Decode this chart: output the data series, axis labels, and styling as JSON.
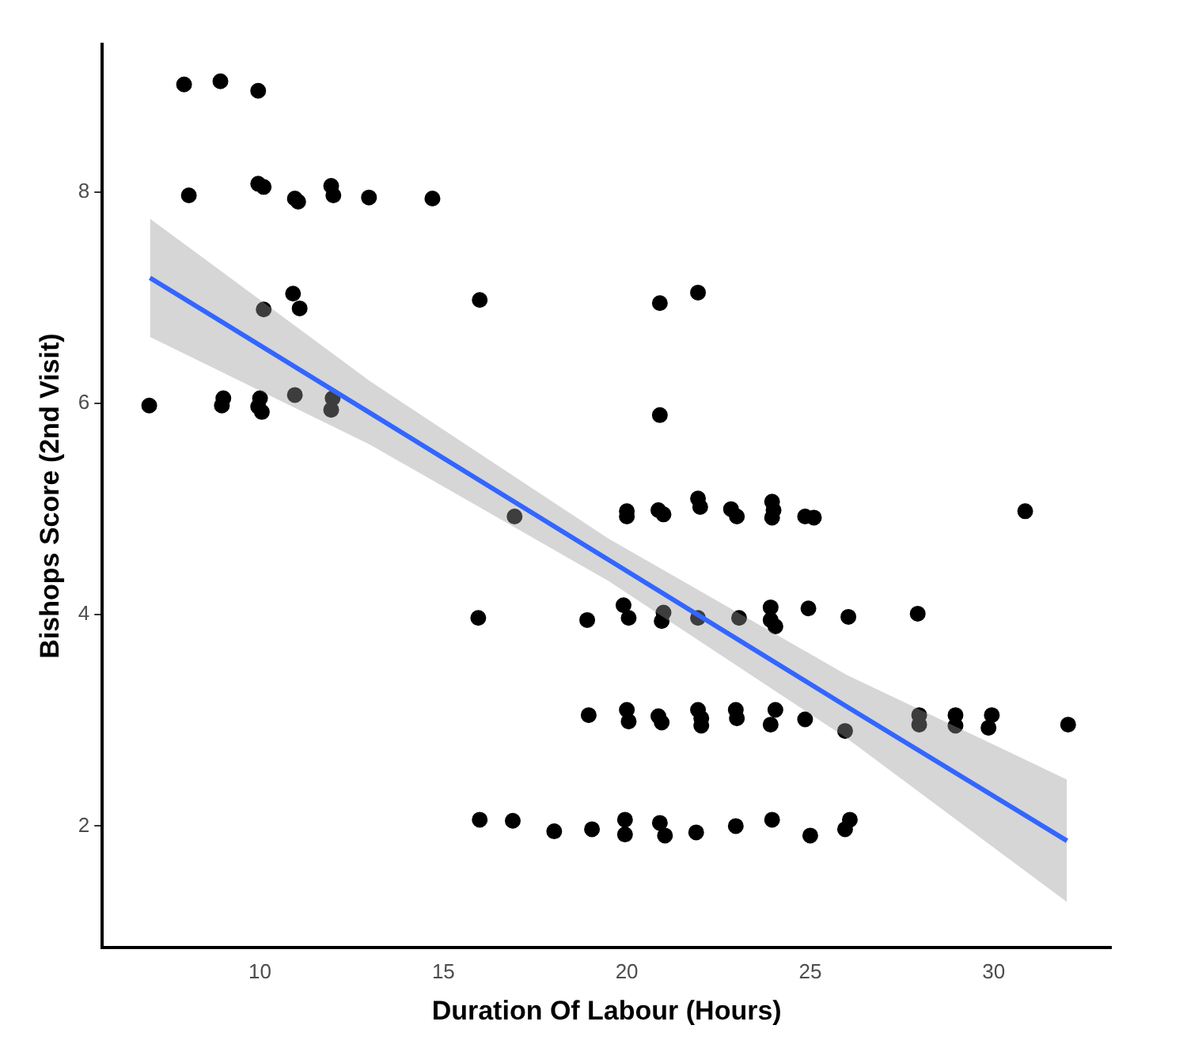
{
  "chart_data": {
    "type": "scatter",
    "xlabel": "Duration Of Labour (Hours)",
    "ylabel": "Bishops Score (2nd Visit)",
    "xlim": [
      5.7,
      33.2
    ],
    "xticks": [
      10,
      15,
      20,
      25,
      30
    ],
    "ylim": [
      0.85,
      9.4
    ],
    "yticks": [
      2,
      4,
      6,
      8
    ],
    "series": [
      {
        "marker": "circle",
        "color": "#000000",
        "x": [
          7.93,
          8.92,
          9.95,
          8.06,
          9.95,
          10.1,
          10.95,
          11.04,
          11.94,
          12.0,
          12.97,
          14.7,
          10.9,
          11.08,
          10.1,
          6.98,
          9.0,
          8.96,
          10.0,
          10.05,
          9.95,
          10.95,
          11.98,
          11.94,
          15.99,
          20.9,
          21.94,
          20.9,
          16.94,
          20.0,
          20.0,
          20.86,
          21.0,
          21.94,
          22.0,
          22.84,
          23.0,
          23.96,
          24.0,
          23.96,
          24.86,
          25.1,
          30.86,
          15.95,
          18.92,
          19.91,
          20.05,
          21.0,
          20.95,
          21.94,
          23.06,
          23.92,
          23.92,
          24.05,
          24.95,
          26.04,
          27.93,
          18.96,
          20.0,
          20.05,
          20.86,
          20.95,
          21.94,
          22.03,
          22.03,
          22.97,
          23.0,
          24.05,
          23.92,
          24.86,
          25.95,
          27.97,
          27.97,
          28.96,
          28.96,
          29.95,
          29.86,
          32.03,
          15.99,
          16.89,
          18.02,
          19.05,
          19.95,
          19.95,
          20.9,
          21.04,
          21.89,
          22.97,
          23.96,
          25.0,
          26.08,
          25.95
        ],
        "values": [
          9.02,
          9.05,
          8.96,
          7.97,
          8.08,
          8.05,
          7.94,
          7.91,
          8.06,
          7.97,
          7.95,
          7.94,
          7.04,
          6.9,
          6.89,
          5.98,
          6.05,
          5.98,
          6.05,
          5.92,
          5.97,
          6.08,
          6.05,
          5.94,
          6.98,
          6.95,
          7.05,
          5.89,
          4.93,
          4.98,
          4.93,
          4.99,
          4.95,
          5.1,
          5.02,
          5.0,
          4.93,
          5.07,
          4.99,
          4.92,
          4.93,
          4.92,
          4.98,
          3.97,
          3.95,
          4.09,
          3.97,
          4.02,
          3.94,
          3.97,
          3.97,
          4.07,
          3.95,
          3.89,
          4.06,
          3.98,
          4.01,
          3.05,
          3.1,
          2.99,
          3.04,
          2.98,
          3.1,
          3.02,
          2.95,
          3.1,
          3.02,
          3.1,
          2.96,
          3.01,
          2.9,
          3.05,
          2.96,
          3.05,
          2.95,
          3.05,
          2.93,
          2.96,
          2.06,
          2.05,
          1.95,
          1.97,
          2.06,
          1.92,
          2.03,
          1.91,
          1.94,
          2.0,
          2.06,
          1.91,
          2.06,
          1.97
        ]
      },
      {
        "type": "line",
        "color": "#3366ff",
        "x": [
          7,
          13,
          19.5,
          26,
          32
        ],
        "values": [
          7.19,
          5.91,
          4.52,
          3.13,
          1.86
        ],
        "lower": [
          6.63,
          5.61,
          4.32,
          2.83,
          1.28
        ],
        "upper": [
          7.75,
          6.21,
          4.72,
          3.43,
          2.44
        ]
      }
    ]
  }
}
